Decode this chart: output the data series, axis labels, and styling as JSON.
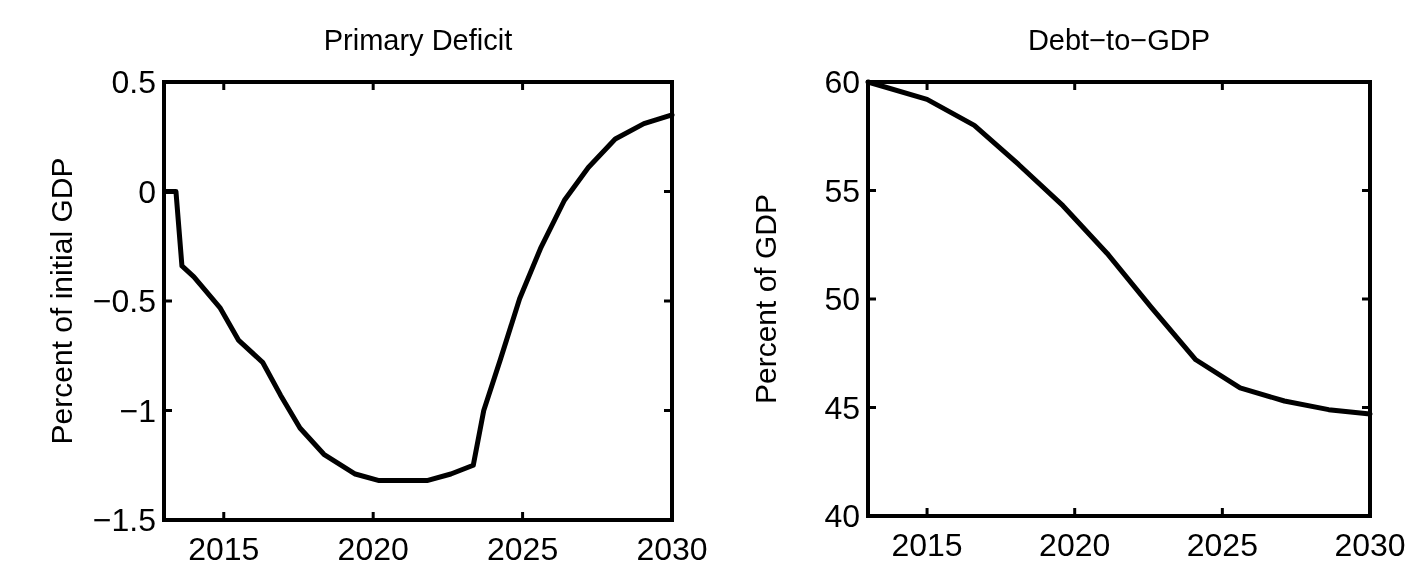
{
  "chart_data": [
    {
      "type": "line",
      "title": "Primary Deficit",
      "ylabel": "Percent of initial GDP",
      "x": [
        2013.07,
        2013.4,
        2013.5,
        2013.6,
        2014.0,
        2014.87,
        2015.5,
        2016.3,
        2016.9,
        2017.55,
        2018.35,
        2019.4,
        2020.2,
        2021.8,
        2022.6,
        2023.35,
        2023.7,
        2024.25,
        2024.9,
        2025.6,
        2026.4,
        2027.2,
        2028.1,
        2029.06,
        2030
      ],
      "series": [
        {
          "color": "#000000",
          "values": [
            0,
            0,
            -0.17,
            -0.34,
            -0.39,
            -0.53,
            -0.68,
            -0.78,
            -0.93,
            -1.08,
            -1.2,
            -1.29,
            -1.32,
            -1.32,
            -1.29,
            -1.25,
            -1.0,
            -0.77,
            -0.49,
            -0.26,
            -0.04,
            0.11,
            0.24,
            0.31,
            0.35
          ]
        }
      ],
      "xlim": [
        2013,
        2030
      ],
      "xticks": [
        2015,
        2020,
        2025,
        2030
      ],
      "ylim": [
        -1.5,
        0.5
      ],
      "yticks": [
        {
          "value": -1.5,
          "label": "−1.5"
        },
        {
          "value": -1,
          "label": "−1"
        },
        {
          "value": -0.5,
          "label": "−0.5"
        },
        0,
        0.5
      ],
      "grid": false
    },
    {
      "type": "line",
      "title": "Debt−to−GDP",
      "ylabel": "Percent of GDP",
      "x": [
        2013,
        2015,
        2016.6,
        2018.1,
        2019.6,
        2021.1,
        2022.6,
        2024.1,
        2025.6,
        2027.1,
        2028.6,
        2030
      ],
      "series": [
        {
          "color": "#000000",
          "values": [
            60,
            59.2,
            58.0,
            56.2,
            54.3,
            52.1,
            49.6,
            47.2,
            45.9,
            45.3,
            44.9,
            44.7
          ]
        }
      ],
      "xlim": [
        2013,
        2030
      ],
      "xticks": [
        2015,
        2020,
        2025,
        2030
      ],
      "ylim": [
        40,
        60
      ],
      "yticks": [
        40,
        45,
        50,
        55,
        60
      ],
      "grid": false
    }
  ]
}
